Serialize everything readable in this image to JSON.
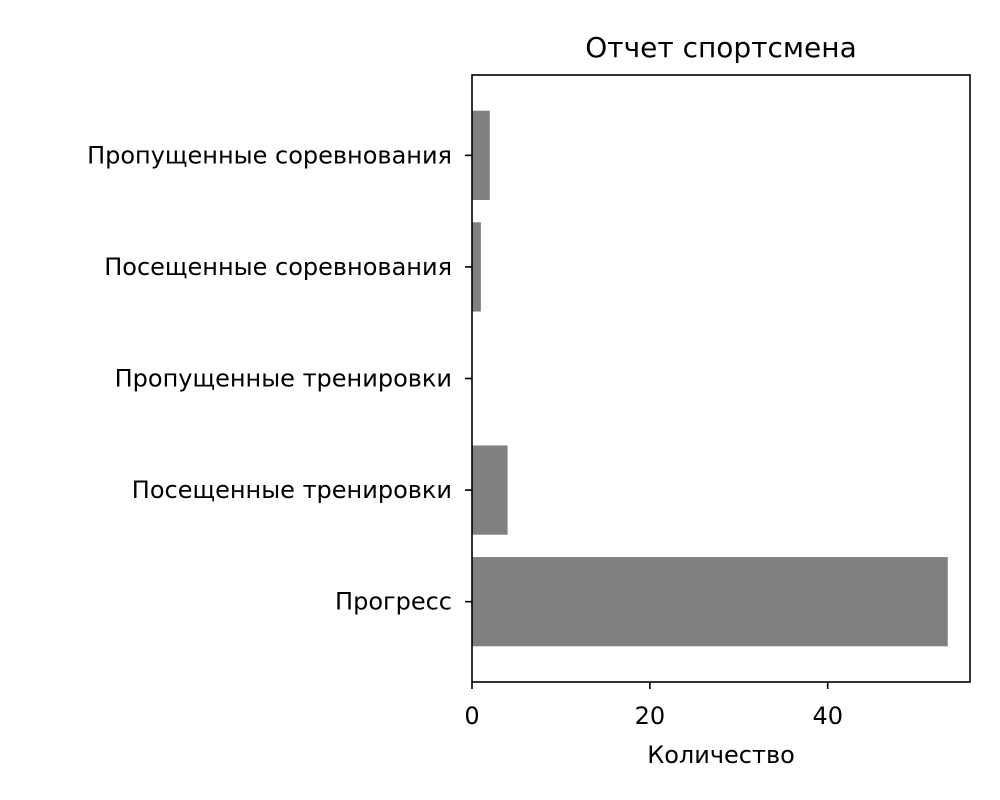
{
  "chart_data": {
    "type": "bar",
    "orientation": "horizontal",
    "title": "Отчет спортсмена",
    "xlabel": "Количество",
    "ylabel": "",
    "categories": [
      "Прогресс",
      "Посещенные тренировки",
      "Пропущенные тренировки",
      "Посещенные соревнования",
      "Пропущенные соревнования"
    ],
    "values": [
      53.5,
      4,
      0,
      1,
      2
    ],
    "xlim": [
      0,
      56
    ],
    "xticks": [
      0,
      20,
      40
    ],
    "grid": false,
    "legend": "none",
    "bar_color": "#808080"
  }
}
